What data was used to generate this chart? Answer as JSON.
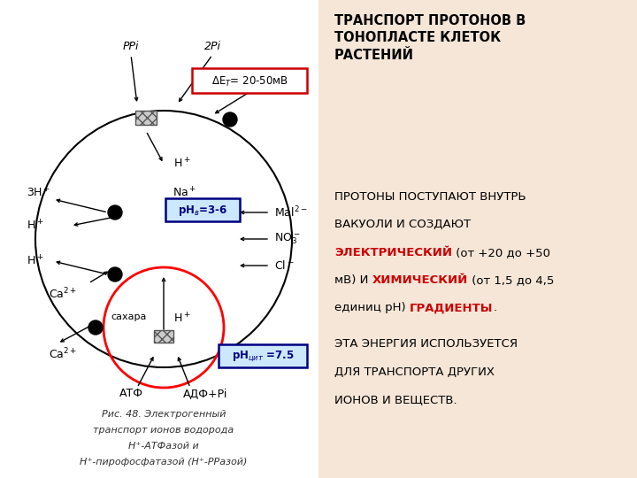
{
  "bg_color": "#f5e6d8",
  "left_bg": "#ffffff",
  "title_text": "ТРАНСПОРТ ПРОТОНОВ В\nТОНОПЛАСТЕ КЛЕТОК\nРАСТЕНИЙ",
  "para2_text": "ЭТА ЭНЕРГИЯ ИСПОЛЬЗУЕТСЯ\nДЛЯ ТРАНСПОРТА ДРУГИХ\nИОНОВ И ВЕЩЕСТВ.",
  "caption_line1": "Рис. 48. Электрогенный",
  "caption_line2": "транспорт ионов водорода",
  "caption_line3": "Н⁺-АТФазой и",
  "caption_line4": "Н⁺-пирофосфатазой (Н⁺-РРазой)"
}
